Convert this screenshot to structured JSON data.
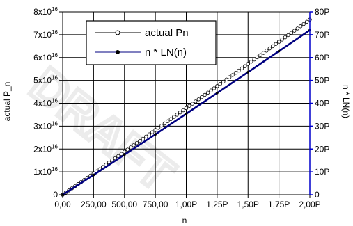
{
  "chart_data": {
    "type": "line",
    "title": "",
    "xlabel": "n",
    "ylabel_left": "actual  P_n",
    "ylabel_right": "n * LN(n)",
    "x_ticks": [
      "0,00",
      "250,00",
      "500,00",
      "750,00",
      "1,00P",
      "1,25P",
      "1,50P",
      "1,75P",
      "2,00P"
    ],
    "x_tick_values": [
      0,
      250,
      500,
      750,
      1000,
      1250,
      1500,
      1750,
      2000
    ],
    "xlim": [
      0,
      2000
    ],
    "y_left_ticks": [
      {
        "value": 0,
        "mantissa": "0",
        "exponent": ""
      },
      {
        "value": 1,
        "mantissa": "1x10",
        "exponent": "16"
      },
      {
        "value": 2,
        "mantissa": "2x10",
        "exponent": "16"
      },
      {
        "value": 3,
        "mantissa": "3x10",
        "exponent": "16"
      },
      {
        "value": 4,
        "mantissa": "4x10",
        "exponent": "16"
      },
      {
        "value": 5,
        "mantissa": "5x10",
        "exponent": "16"
      },
      {
        "value": 6,
        "mantissa": "6x10",
        "exponent": "16"
      },
      {
        "value": 7,
        "mantissa": "7x10",
        "exponent": "16"
      },
      {
        "value": 8,
        "mantissa": "8x10",
        "exponent": "16"
      }
    ],
    "ylim_left": [
      0,
      8
    ],
    "y_right_ticks": [
      "0",
      "10P",
      "20P",
      "30P",
      "40P",
      "50P",
      "60P",
      "70P",
      "80P"
    ],
    "y_right_tick_values": [
      0,
      10,
      20,
      30,
      40,
      50,
      60,
      70,
      80
    ],
    "ylim_right": [
      0,
      80
    ],
    "grid": true,
    "legend_position": "top-left",
    "series": [
      {
        "name": "actual Pn",
        "axis": "left",
        "marker": "open-circle",
        "color": "#000000",
        "x": [
          0,
          250,
          500,
          750,
          1000,
          1250,
          1500,
          1750,
          2000
        ],
        "y": [
          0,
          0.93,
          1.88,
          2.83,
          3.79,
          4.75,
          5.72,
          6.69,
          7.66
        ]
      },
      {
        "name": "n * LN(n)",
        "axis": "right",
        "marker": "filled-circle",
        "color": "#000080",
        "x": [
          0,
          250,
          500,
          750,
          1000,
          1250,
          1500,
          1750,
          2000
        ],
        "y": [
          0,
          8.64,
          17.5,
          26.4,
          35.4,
          44.5,
          53.6,
          62.8,
          72.0
        ]
      }
    ]
  },
  "colors": {
    "left_axis": "#000000",
    "right_axis": "#0000cc",
    "grid": "#000000"
  }
}
